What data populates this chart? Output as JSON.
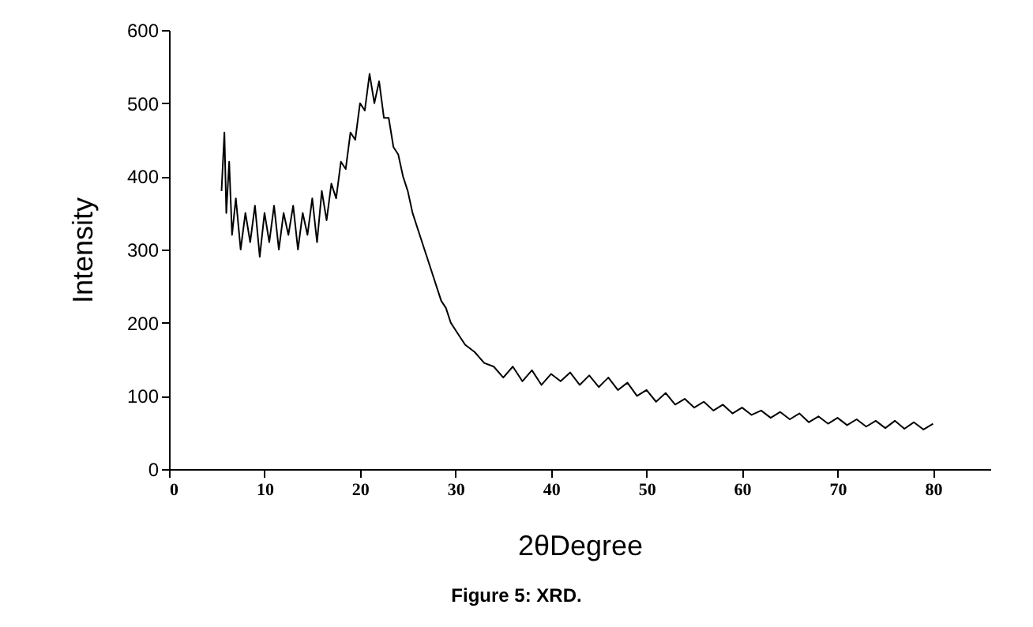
{
  "chart_data": {
    "type": "line",
    "xlabel": "2θDegree",
    "ylabel": "Intensity",
    "annotations": [
      "Figure 5: XRD."
    ],
    "xlim": [
      0,
      86
    ],
    "xticks": [
      0,
      10,
      20,
      30,
      40,
      50,
      60,
      70,
      80
    ],
    "ylim": [
      0,
      600
    ],
    "yticks": [
      0,
      100,
      200,
      300,
      400,
      500,
      600
    ],
    "grid": false,
    "marker": "none",
    "line_style": "solid",
    "x": [
      5.5,
      5.8,
      6,
      6.3,
      6.6,
      7,
      7.5,
      8,
      8.5,
      9,
      9.5,
      10,
      10.5,
      11,
      11.5,
      12,
      12.5,
      13,
      13.5,
      14,
      14.5,
      15,
      15.5,
      16,
      16.5,
      17,
      17.5,
      18,
      18.5,
      19,
      19.5,
      20,
      20.5,
      21,
      21.5,
      22,
      22.5,
      23,
      23.5,
      24,
      24.5,
      25,
      25.5,
      26,
      26.5,
      27,
      27.5,
      28,
      28.5,
      29,
      29.5,
      30,
      31,
      32,
      33,
      34,
      35,
      36,
      37,
      38,
      39,
      40,
      41,
      42,
      43,
      44,
      45,
      46,
      47,
      48,
      49,
      50,
      51,
      52,
      53,
      54,
      55,
      56,
      57,
      58,
      59,
      60,
      61,
      62,
      63,
      64,
      65,
      66,
      67,
      68,
      69,
      70,
      71,
      72,
      73,
      74,
      75,
      76,
      77,
      78,
      79,
      80
    ],
    "series": [
      {
        "color": "#000000",
        "values": [
          380,
          460,
          350,
          420,
          320,
          370,
          300,
          350,
          310,
          360,
          290,
          350,
          310,
          360,
          300,
          350,
          320,
          360,
          300,
          350,
          320,
          370,
          310,
          380,
          340,
          390,
          370,
          420,
          410,
          460,
          450,
          500,
          490,
          540,
          500,
          530,
          480,
          480,
          440,
          430,
          400,
          380,
          350,
          330,
          310,
          290,
          270,
          250,
          230,
          220,
          200,
          190,
          170,
          160,
          145,
          140,
          125,
          140,
          120,
          135,
          115,
          130,
          120,
          132,
          115,
          128,
          112,
          125,
          108,
          118,
          100,
          108,
          92,
          104,
          88,
          96,
          84,
          92,
          80,
          88,
          76,
          84,
          74,
          80,
          70,
          78,
          68,
          76,
          64,
          72,
          62,
          70,
          60,
          68,
          58,
          66,
          56,
          66,
          55,
          64,
          54,
          62
        ]
      }
    ]
  }
}
